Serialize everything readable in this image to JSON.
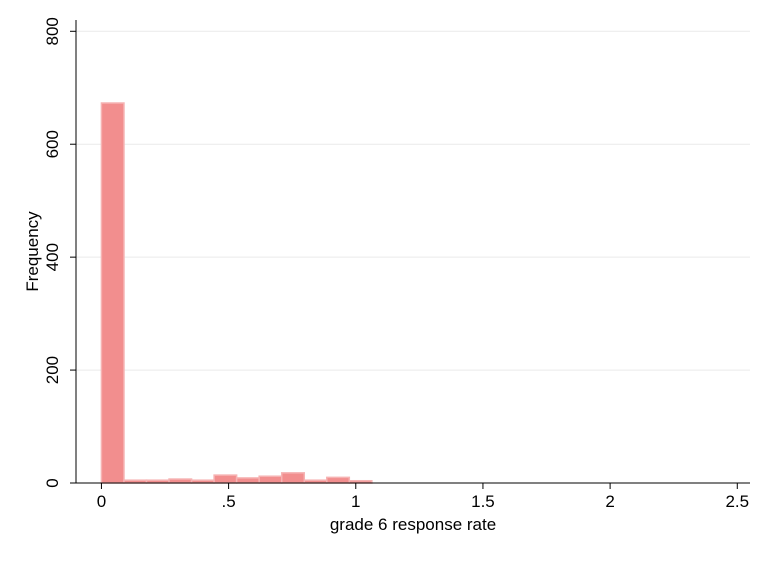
{
  "chart_data": {
    "type": "bar",
    "subtype": "histogram",
    "title": "",
    "xlabel": "grade 6 response rate",
    "ylabel": "Frequency",
    "xlim": [
      -0.1,
      2.55
    ],
    "ylim": [
      0,
      820
    ],
    "x_ticks": [
      0,
      0.5,
      1,
      1.5,
      2,
      2.5
    ],
    "x_tick_labels": [
      "0",
      ".5",
      "1",
      "1.5",
      "2",
      "2.5"
    ],
    "y_ticks": [
      0,
      200,
      400,
      600,
      800
    ],
    "y_tick_labels": [
      "0",
      "200",
      "400",
      "600",
      "800"
    ],
    "grid": true,
    "bin_width": 0.0886,
    "bins": [
      {
        "start": 0.0,
        "frequency": 673
      },
      {
        "start": 0.0886,
        "frequency": 5
      },
      {
        "start": 0.1772,
        "frequency": 5
      },
      {
        "start": 0.2658,
        "frequency": 7
      },
      {
        "start": 0.3544,
        "frequency": 5
      },
      {
        "start": 0.443,
        "frequency": 14
      },
      {
        "start": 0.5316,
        "frequency": 9
      },
      {
        "start": 0.6202,
        "frequency": 12
      },
      {
        "start": 0.7088,
        "frequency": 18
      },
      {
        "start": 0.7974,
        "frequency": 5
      },
      {
        "start": 0.886,
        "frequency": 10
      },
      {
        "start": 0.9746,
        "frequency": 4
      }
    ],
    "bar_fill": "#f28e8e",
    "bar_stroke": "#f6b3b3"
  }
}
